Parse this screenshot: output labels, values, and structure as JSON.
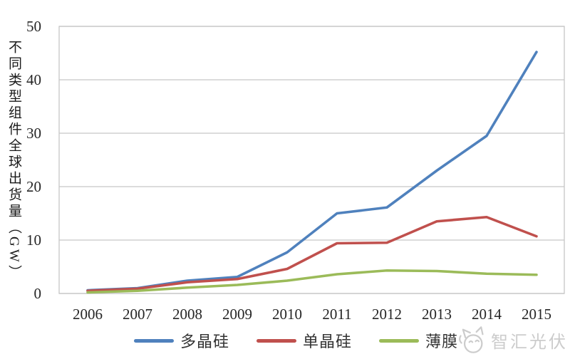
{
  "chart_data": {
    "type": "line",
    "title": "",
    "xlabel": "",
    "ylabel": "不同类型组件全球出货量（GW）",
    "x": [
      "2006",
      "2007",
      "2008",
      "2009",
      "2010",
      "2011",
      "2012",
      "2013",
      "2014",
      "2015"
    ],
    "series": [
      {
        "name": "多晶硅",
        "color": "#4F81BD",
        "values": [
          0.6,
          1.0,
          2.4,
          3.1,
          7.7,
          15.0,
          16.1,
          23.0,
          29.5,
          45.2
        ]
      },
      {
        "name": "单晶硅",
        "color": "#C0504D",
        "values": [
          0.5,
          0.9,
          2.1,
          2.7,
          4.6,
          9.4,
          9.5,
          13.5,
          14.3,
          10.7
        ]
      },
      {
        "name": "薄膜",
        "color": "#9BBB59",
        "values": [
          0.2,
          0.5,
          1.1,
          1.6,
          2.4,
          3.6,
          4.3,
          4.2,
          3.7,
          3.5
        ]
      }
    ],
    "ylim": [
      0,
      50
    ],
    "yticks": [
      0,
      10,
      20,
      30,
      40,
      50
    ],
    "grid": true,
    "grid_color": "#C6C6C6",
    "legend_position": "bottom"
  },
  "watermark": {
    "text": "智汇光伏"
  }
}
